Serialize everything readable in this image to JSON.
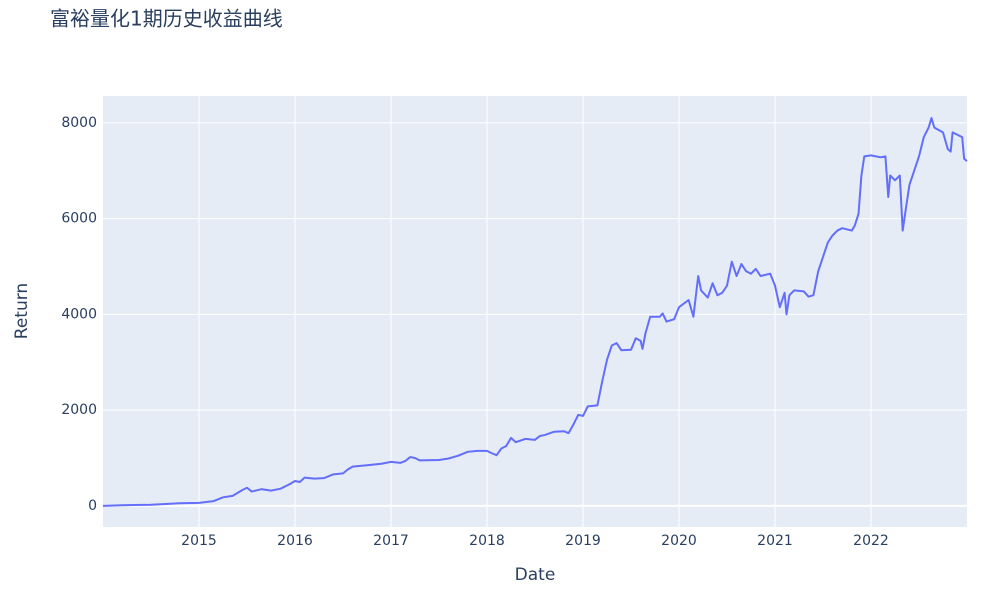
{
  "chart_data": {
    "type": "line",
    "title": "富裕量化1期历史收益曲线",
    "x_label": "Date",
    "y_label": "Return",
    "x": [
      2014.0,
      2014.2,
      2014.5,
      2014.8,
      2015.0,
      2015.15,
      2015.25,
      2015.35,
      2015.45,
      2015.5,
      2015.55,
      2015.65,
      2015.75,
      2015.85,
      2015.95,
      2016.0,
      2016.05,
      2016.1,
      2016.2,
      2016.3,
      2016.4,
      2016.5,
      2016.55,
      2016.6,
      2016.75,
      2016.9,
      2017.0,
      2017.1,
      2017.15,
      2017.2,
      2017.25,
      2017.3,
      2017.5,
      2017.6,
      2017.7,
      2017.8,
      2017.9,
      2018.0,
      2018.05,
      2018.1,
      2018.15,
      2018.2,
      2018.25,
      2018.3,
      2018.4,
      2018.5,
      2018.55,
      2018.6,
      2018.7,
      2018.8,
      2018.85,
      2018.9,
      2018.95,
      2019.0,
      2019.05,
      2019.15,
      2019.2,
      2019.25,
      2019.3,
      2019.35,
      2019.4,
      2019.5,
      2019.55,
      2019.6,
      2019.62,
      2019.65,
      2019.7,
      2019.8,
      2019.83,
      2019.87,
      2019.95,
      2020.0,
      2020.1,
      2020.15,
      2020.2,
      2020.23,
      2020.3,
      2020.35,
      2020.4,
      2020.45,
      2020.5,
      2020.55,
      2020.6,
      2020.65,
      2020.7,
      2020.75,
      2020.8,
      2020.85,
      2020.95,
      2021.0,
      2021.05,
      2021.1,
      2021.12,
      2021.15,
      2021.2,
      2021.3,
      2021.35,
      2021.4,
      2021.45,
      2021.5,
      2021.55,
      2021.6,
      2021.65,
      2021.7,
      2021.8,
      2021.83,
      2021.87,
      2021.9,
      2021.93,
      2022.0,
      2022.1,
      2022.15,
      2022.18,
      2022.2,
      2022.25,
      2022.3,
      2022.33,
      2022.37,
      2022.4,
      2022.45,
      2022.5,
      2022.55,
      2022.6,
      2022.63,
      2022.66,
      2022.75,
      2022.8,
      2022.83,
      2022.85,
      2022.9,
      2022.95,
      2022.97,
      2023.0
    ],
    "series": [
      {
        "name": "Return",
        "color": "#636efa",
        "values": [
          0,
          15,
          25,
          55,
          65,
          100,
          180,
          210,
          330,
          380,
          300,
          350,
          320,
          360,
          460,
          520,
          500,
          590,
          570,
          580,
          660,
          680,
          760,
          820,
          850,
          880,
          920,
          900,
          940,
          1020,
          1000,
          950,
          960,
          990,
          1050,
          1130,
          1150,
          1150,
          1100,
          1060,
          1200,
          1250,
          1420,
          1330,
          1400,
          1380,
          1460,
          1480,
          1550,
          1560,
          1520,
          1700,
          1900,
          1880,
          2080,
          2100,
          2600,
          3050,
          3350,
          3400,
          3250,
          3260,
          3500,
          3450,
          3280,
          3600,
          3950,
          3950,
          4020,
          3850,
          3900,
          4150,
          4300,
          3950,
          4800,
          4500,
          4350,
          4650,
          4400,
          4450,
          4600,
          5100,
          4800,
          5050,
          4900,
          4850,
          4950,
          4800,
          4850,
          4600,
          4150,
          4450,
          4000,
          4400,
          4500,
          4480,
          4370,
          4400,
          4900,
          5200,
          5500,
          5650,
          5750,
          5800,
          5750,
          5850,
          6100,
          6900,
          7300,
          7320,
          7280,
          7300,
          6450,
          6900,
          6800,
          6900,
          5750,
          6300,
          6700,
          7000,
          7300,
          7700,
          7900,
          8100,
          7900,
          7800,
          7450,
          7400,
          7800,
          7750,
          7700,
          7250,
          7200
        ]
      }
    ],
    "xlim": [
      2014.0,
      2023.0
    ],
    "xticks": [
      2015,
      2016,
      2017,
      2018,
      2019,
      2020,
      2021,
      2022
    ],
    "ylim": [
      -440,
      8560
    ],
    "yticks": [
      0,
      2000,
      4000,
      6000,
      8000
    ],
    "grid": true
  }
}
